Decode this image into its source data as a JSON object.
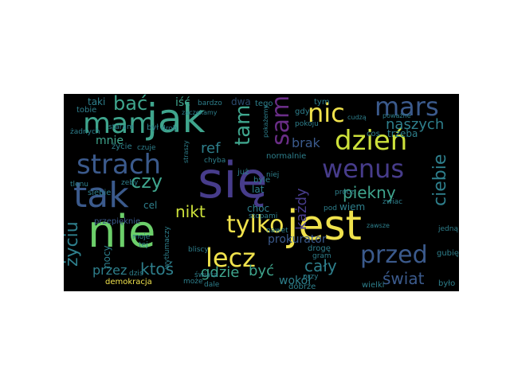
{
  "palette": {
    "purple": "#6a2d87",
    "violet": "#473c8b",
    "blue": "#3b5a8c",
    "teal": "#2e7f8c",
    "cyan": "#3fa58d",
    "green": "#6ccf6a",
    "lime": "#cde13b",
    "yellow": "#f0e24c",
    "dark": "#2b4a6e"
  },
  "words": [
    {
      "text": "się",
      "color": "violet"
    },
    {
      "text": "nie",
      "color": "green"
    },
    {
      "text": "jest",
      "color": "yellow"
    },
    {
      "text": "jak",
      "color": "cyan"
    },
    {
      "text": "tak",
      "color": "blue"
    },
    {
      "text": "mam",
      "color": "cyan"
    },
    {
      "text": "nic",
      "color": "yellow"
    },
    {
      "text": "mars",
      "color": "blue"
    },
    {
      "text": "sam",
      "color": "purple"
    },
    {
      "text": "strach",
      "color": "blue"
    },
    {
      "text": "wenus",
      "color": "violet"
    },
    {
      "text": "dzień",
      "color": "lime"
    },
    {
      "text": "lecz",
      "color": "yellow"
    },
    {
      "text": "tylko",
      "color": "yellow"
    },
    {
      "text": "przed",
      "color": "blue"
    },
    {
      "text": "bać",
      "color": "cyan"
    },
    {
      "text": "tam",
      "color": "cyan"
    },
    {
      "text": "czy",
      "color": "cyan"
    },
    {
      "text": "ciebie",
      "color": "teal"
    },
    {
      "text": "piekny",
      "color": "cyan"
    },
    {
      "text": "nikt",
      "color": "lime"
    },
    {
      "text": "życiu",
      "color": "teal"
    },
    {
      "text": "ref",
      "color": "teal"
    },
    {
      "text": "naszych",
      "color": "teal"
    },
    {
      "text": "brak",
      "color": "blue"
    },
    {
      "text": "mnie",
      "color": "cyan"
    },
    {
      "text": "cały",
      "color": "teal"
    },
    {
      "text": "ktoś",
      "color": "teal"
    },
    {
      "text": "gdzie",
      "color": "cyan"
    },
    {
      "text": "być",
      "color": "cyan"
    },
    {
      "text": "świat",
      "color": "blue"
    },
    {
      "text": "przez",
      "color": "teal"
    },
    {
      "text": "trzeba",
      "color": "teal"
    },
    {
      "text": "każdy",
      "color": "violet"
    },
    {
      "text": "prokurator",
      "color": "blue"
    },
    {
      "text": "wokół",
      "color": "teal"
    },
    {
      "text": "nocy",
      "color": "teal"
    },
    {
      "text": "choc",
      "color": "teal"
    },
    {
      "text": "wiem",
      "color": "teal"
    },
    {
      "text": "cel",
      "color": "teal"
    },
    {
      "text": "lat",
      "color": "teal"
    },
    {
      "text": "taki",
      "color": "teal"
    },
    {
      "text": "tobie",
      "color": "teal"
    },
    {
      "text": "iść",
      "color": "cyan"
    },
    {
      "text": "dwa",
      "color": "dark"
    },
    {
      "text": "demokracja",
      "color": "yellow"
    },
    {
      "text": "przepięknie",
      "color": "blue"
    },
    {
      "text": "życie",
      "color": "teal"
    },
    {
      "text": "gubię",
      "color": "teal"
    },
    {
      "text": "wielki",
      "color": "teal"
    },
    {
      "text": "drogę",
      "color": "teal"
    },
    {
      "text": "było",
      "color": "teal"
    },
    {
      "text": "już",
      "color": "teal"
    },
    {
      "text": "gdy",
      "color": "teal"
    },
    {
      "text": "tym",
      "color": "teal"
    },
    {
      "text": "cos",
      "color": "teal"
    },
    {
      "text": "tego",
      "color": "teal"
    },
    {
      "text": "dobrze",
      "color": "teal"
    },
    {
      "text": "byle",
      "color": "teal"
    },
    {
      "text": "normalnie",
      "color": "teal"
    },
    {
      "text": "siebie",
      "color": "teal"
    },
    {
      "text": "był",
      "color": "teal"
    },
    {
      "text": "żadnych",
      "color": "teal"
    },
    {
      "text": "staram",
      "color": "teal"
    },
    {
      "text": "bliscy",
      "color": "teal"
    },
    {
      "text": "tej",
      "color": "teal"
    },
    {
      "text": "moje",
      "color": "teal"
    },
    {
      "text": "nawet",
      "color": "teal"
    },
    {
      "text": "pod",
      "color": "teal"
    },
    {
      "text": "przy",
      "color": "teal"
    },
    {
      "text": "zwiac",
      "color": "teal"
    },
    {
      "text": "stopami",
      "color": "teal"
    },
    {
      "text": "pokoju",
      "color": "teal"
    },
    {
      "text": "drob",
      "color": "teal"
    },
    {
      "text": "czuje",
      "color": "teal"
    },
    {
      "text": "chyba",
      "color": "teal"
    },
    {
      "text": "dzis",
      "color": "teal"
    },
    {
      "text": "może",
      "color": "teal"
    },
    {
      "text": "tlenu",
      "color": "teal"
    },
    {
      "text": "jedną",
      "color": "teal"
    },
    {
      "text": "pokażemy",
      "color": "teal"
    },
    {
      "text": "świata",
      "color": "teal"
    },
    {
      "text": "gram",
      "color": "teal"
    },
    {
      "text": "niej",
      "color": "teal"
    },
    {
      "text": "prócz",
      "color": "teal"
    },
    {
      "text": "dale",
      "color": "teal"
    },
    {
      "text": "bardzo",
      "color": "teal"
    },
    {
      "text": "zeby",
      "color": "teal"
    },
    {
      "text": "wytłumaczy",
      "color": "teal"
    },
    {
      "text": "zaczekamy",
      "color": "teal"
    },
    {
      "text": "straszy",
      "color": "teal"
    },
    {
      "text": "poważne",
      "color": "teal"
    },
    {
      "text": "zawsze",
      "color": "teal"
    },
    {
      "text": "cudzą",
      "color": "teal"
    }
  ]
}
